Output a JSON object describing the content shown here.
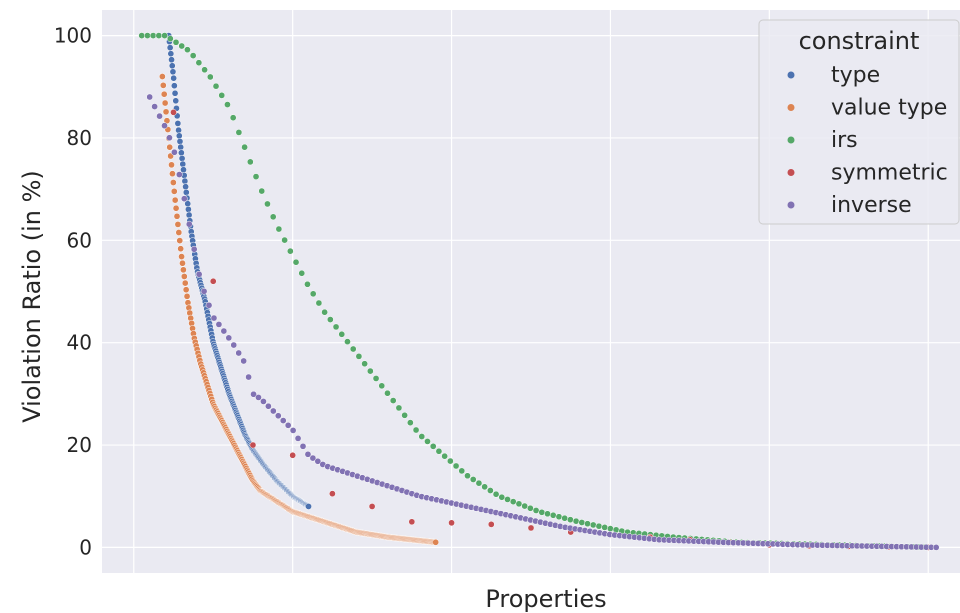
{
  "chart_data": {
    "type": "scatter",
    "xlabel": "Properties",
    "ylabel": "Violation Ratio (in %)",
    "ylim": [
      -5,
      105
    ],
    "yticks": [
      0,
      20,
      40,
      60,
      80,
      100
    ],
    "x_tick_labels": "none",
    "grid": true,
    "background": "#EAEAF2",
    "legend": {
      "title": "constraint",
      "placement": "top-right"
    },
    "series": [
      {
        "name": "type",
        "color": "#4C72B0",
        "marker": "dot",
        "x_start": 22,
        "x_end": 110,
        "count": 200,
        "points": [
          [
            22,
            100
          ],
          [
            25,
            92
          ],
          [
            28,
            82
          ],
          [
            32,
            72
          ],
          [
            36,
            62
          ],
          [
            40,
            54
          ],
          [
            45,
            48
          ],
          [
            50,
            40
          ],
          [
            55,
            35
          ],
          [
            60,
            30
          ],
          [
            65,
            26
          ],
          [
            70,
            22
          ],
          [
            75,
            19
          ],
          [
            82,
            16
          ],
          [
            90,
            13
          ],
          [
            100,
            10
          ],
          [
            110,
            8
          ]
        ]
      },
      {
        "name": "value type",
        "color": "#DD8452",
        "marker": "dot",
        "x_start": 18,
        "x_end": 190,
        "count": 300,
        "points": [
          [
            18,
            92
          ],
          [
            22,
            80
          ],
          [
            26,
            68
          ],
          [
            30,
            57
          ],
          [
            34,
            48
          ],
          [
            38,
            41
          ],
          [
            42,
            36
          ],
          [
            46,
            32
          ],
          [
            50,
            28
          ],
          [
            55,
            25
          ],
          [
            60,
            22
          ],
          [
            65,
            19
          ],
          [
            70,
            16
          ],
          [
            75,
            13
          ],
          [
            80,
            11
          ],
          [
            90,
            9
          ],
          [
            100,
            7
          ],
          [
            120,
            5
          ],
          [
            140,
            3
          ],
          [
            160,
            2
          ],
          [
            190,
            1
          ]
        ]
      },
      {
        "name": "irs",
        "color": "#55A868",
        "marker": "dot",
        "x_start": 5,
        "x_end": 505,
        "count": 140,
        "points": [
          [
            5,
            100
          ],
          [
            20,
            100
          ],
          [
            35,
            97
          ],
          [
            48,
            92
          ],
          [
            60,
            86
          ],
          [
            70,
            78
          ],
          [
            80,
            70
          ],
          [
            90,
            63
          ],
          [
            100,
            57
          ],
          [
            110,
            51
          ],
          [
            120,
            46
          ],
          [
            130,
            42
          ],
          [
            140,
            38
          ],
          [
            150,
            34
          ],
          [
            160,
            30
          ],
          [
            170,
            26
          ],
          [
            180,
            22
          ],
          [
            195,
            18
          ],
          [
            210,
            14
          ],
          [
            230,
            10
          ],
          [
            255,
            7
          ],
          [
            280,
            5
          ],
          [
            310,
            3
          ],
          [
            340,
            2
          ],
          [
            380,
            1
          ],
          [
            440,
            0.5
          ],
          [
            505,
            0
          ]
        ]
      },
      {
        "name": "symmetric",
        "color": "#C44E52",
        "marker": "dot",
        "points": [
          [
            25,
            85
          ],
          [
            50,
            52
          ],
          [
            75,
            20
          ],
          [
            100,
            18
          ],
          [
            125,
            10.5
          ],
          [
            150,
            8
          ],
          [
            175,
            5
          ],
          [
            200,
            4.8
          ],
          [
            225,
            4.5
          ],
          [
            250,
            3.8
          ],
          [
            275,
            3
          ],
          [
            300,
            2.5
          ],
          [
            325,
            2
          ],
          [
            350,
            1.5
          ],
          [
            375,
            1
          ],
          [
            400,
            0.5
          ],
          [
            425,
            0.3
          ],
          [
            450,
            0.2
          ],
          [
            475,
            0.1
          ],
          [
            500,
            0
          ]
        ]
      },
      {
        "name": "inverse",
        "color": "#8172B3",
        "marker": "dot",
        "x_start": 10,
        "x_end": 505,
        "count": 160,
        "points": [
          [
            10,
            88
          ],
          [
            15,
            85
          ],
          [
            20,
            82
          ],
          [
            25,
            78
          ],
          [
            30,
            71
          ],
          [
            35,
            63
          ],
          [
            42,
            52
          ],
          [
            50,
            45
          ],
          [
            55,
            43
          ],
          [
            62,
            40
          ],
          [
            70,
            36
          ],
          [
            75,
            30
          ],
          [
            80,
            29
          ],
          [
            90,
            26
          ],
          [
            100,
            23
          ],
          [
            110,
            18
          ],
          [
            120,
            16
          ],
          [
            140,
            14
          ],
          [
            160,
            12
          ],
          [
            180,
            10
          ],
          [
            210,
            8
          ],
          [
            240,
            6
          ],
          [
            270,
            4
          ],
          [
            300,
            2.5
          ],
          [
            330,
            1.5
          ],
          [
            370,
            1
          ],
          [
            420,
            0.5
          ],
          [
            505,
            0
          ]
        ]
      }
    ]
  }
}
